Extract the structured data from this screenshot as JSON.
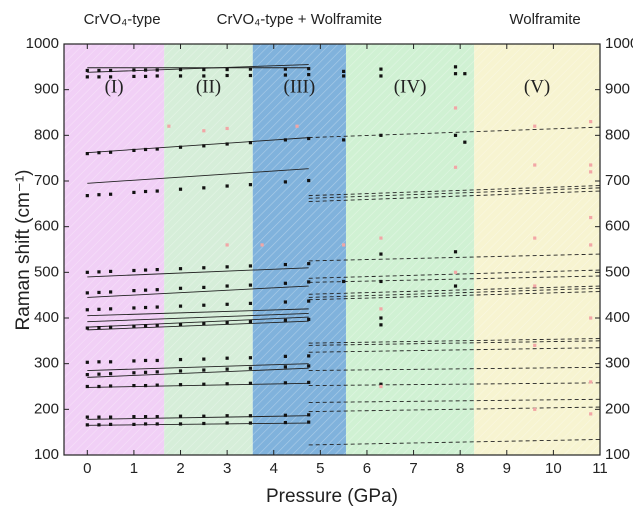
{
  "chart_data": {
    "type": "scatter",
    "xlabel": "Pressure (GPa)",
    "ylabel": "Raman shift (cm⁻¹)",
    "phase_labels": [
      "CrVO₄-type",
      "CrVO₄-type + Wolframite",
      "Wolframite"
    ],
    "xlim": [
      -0.5,
      11
    ],
    "ylim": [
      100,
      1000
    ],
    "xticks": [
      0,
      1,
      2,
      3,
      4,
      5,
      6,
      7,
      8,
      9,
      10,
      11
    ],
    "yticks": [
      100,
      200,
      300,
      400,
      500,
      600,
      700,
      800,
      900,
      1000
    ],
    "regions": [
      {
        "label": "(I)",
        "range": [
          -0.5,
          1.65
        ],
        "color": "#eec8f4"
      },
      {
        "label": "(II)",
        "range": [
          1.65,
          3.55
        ],
        "color": "#cfebd2"
      },
      {
        "label": "(III)",
        "range": [
          3.55,
          5.55
        ],
        "color": "#6aa5d6"
      },
      {
        "label": "(IV)",
        "range": [
          5.55,
          8.3
        ],
        "color": "#c8efcb"
      },
      {
        "label": "(V)",
        "range": [
          8.3,
          11
        ],
        "color": "#f6f2c9"
      }
    ],
    "x": [
      0,
      0.25,
      0.5,
      1,
      1.25,
      1.5,
      2,
      2.5,
      3,
      3.5,
      4.25,
      4.75
    ],
    "series": [
      {
        "color": "#111111",
        "values": [
          166,
          166,
          167,
          167,
          168,
          168,
          168,
          169,
          170,
          170,
          171,
          172
        ]
      },
      {
        "color": "#111111",
        "values": [
          183,
          183,
          183,
          184,
          184,
          184,
          185,
          185,
          186,
          186,
          187,
          188
        ]
      },
      {
        "color": "#111111",
        "values": [
          250,
          250,
          251,
          252,
          252,
          253,
          254,
          255,
          256,
          257,
          258,
          259
        ]
      },
      {
        "color": "#111111",
        "values": [
          276,
          277,
          278,
          280,
          281,
          282,
          284,
          286,
          288,
          290,
          293,
          295
        ]
      },
      {
        "color": "#111111",
        "values": [
          303,
          304,
          304,
          306,
          307,
          307,
          309,
          310,
          312,
          313,
          316,
          317
        ]
      },
      {
        "color": "#111111",
        "values": [
          378,
          379,
          380,
          382,
          383,
          384,
          386,
          388,
          390,
          392,
          395,
          397
        ]
      },
      {
        "color": "#111111",
        "values": [
          418,
          419,
          420,
          422,
          423,
          424,
          426,
          428,
          430,
          432,
          435,
          437
        ]
      },
      {
        "color": "#111111",
        "values": [
          455,
          456,
          457,
          460,
          461,
          462,
          465,
          467,
          470,
          472,
          476,
          479
        ]
      },
      {
        "color": "#111111",
        "values": [
          500,
          501,
          502,
          504,
          505,
          506,
          508,
          510,
          512,
          514,
          517,
          519
        ]
      },
      {
        "color": "#111111",
        "values": [
          668,
          670,
          671,
          675,
          677,
          678,
          682,
          685,
          689,
          692,
          698,
          701
        ]
      },
      {
        "color": "#111111",
        "values": [
          760,
          762,
          763,
          767,
          769,
          770,
          774,
          777,
          781,
          784,
          790,
          793
        ]
      },
      {
        "color": "#111111",
        "values": [
          928,
          928,
          928,
          929,
          929,
          930,
          930,
          930,
          931,
          931,
          932,
          933
        ]
      },
      {
        "color": "#111111",
        "values": [
          942,
          942,
          942,
          943,
          943,
          943,
          944,
          944,
          944,
          945,
          945,
          946
        ]
      },
      {
        "color": "#111111",
        "x": [
          5.5,
          5.5,
          5.5,
          5.5,
          6.3,
          6.3,
          6.3,
          6.3,
          6.3,
          6.3,
          6.3,
          6.3,
          7.9,
          7.9,
          7.9,
          7.9,
          7.9,
          8.1,
          8.1
        ],
        "values": [
          940,
          930,
          790,
          480,
          945,
          930,
          800,
          540,
          480,
          400,
          385,
          255,
          950,
          935,
          800,
          545,
          470,
          935,
          785
        ]
      },
      {
        "color": "#f2a6a6",
        "x": [
          1.75,
          2.5,
          3.0,
          3.0,
          3.75,
          4.5,
          5.5,
          6.3,
          6.3,
          6.3,
          7.9,
          7.9,
          7.9,
          9.6,
          9.6,
          9.6,
          9.6,
          9.6,
          9.6,
          10.8,
          10.8,
          10.8,
          10.8,
          10.8,
          10.8,
          10.8,
          10.8
        ],
        "values": [
          820,
          810,
          815,
          560,
          560,
          820,
          560,
          575,
          420,
          250,
          860,
          730,
          500,
          820,
          735,
          575,
          470,
          340,
          200,
          830,
          735,
          720,
          620,
          560,
          400,
          260,
          190
        ]
      }
    ],
    "fits": [
      {
        "dash": false,
        "x": [
          0,
          4.75
        ],
        "lines": [
          [
            165,
            170
          ],
          [
            178,
            186
          ],
          [
            248,
            257
          ],
          [
            270,
            290
          ],
          [
            285,
            300
          ],
          [
            374,
            393
          ],
          [
            380,
            402
          ],
          [
            392,
            410
          ],
          [
            405,
            420
          ],
          [
            445,
            470
          ],
          [
            490,
            510
          ],
          [
            695,
            727
          ],
          [
            762,
            795
          ],
          [
            938,
            955
          ],
          [
            948,
            948
          ]
        ]
      },
      {
        "dash": true,
        "x": [
          4.75,
          11
        ],
        "lines": [
          [
            122,
            134
          ],
          [
            195,
            205
          ],
          [
            215,
            222
          ],
          [
            252,
            258
          ],
          [
            285,
            292
          ],
          [
            325,
            335
          ],
          [
            340,
            350
          ],
          [
            345,
            355
          ],
          [
            440,
            458
          ],
          [
            445,
            465
          ],
          [
            452,
            470
          ],
          [
            478,
            492
          ],
          [
            487,
            505
          ],
          [
            525,
            540
          ],
          [
            655,
            678
          ],
          [
            662,
            685
          ],
          [
            668,
            690
          ],
          [
            795,
            818
          ]
        ]
      }
    ]
  }
}
